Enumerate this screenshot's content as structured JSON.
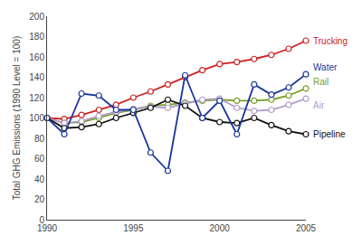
{
  "chart_data": {
    "type": "line",
    "ylabel": "Total GHG Emissions (1990 Level = 100)",
    "x": [
      1990,
      1991,
      1992,
      1993,
      1994,
      1995,
      1996,
      1997,
      1998,
      1999,
      2000,
      2001,
      2002,
      2003,
      2004,
      2005
    ],
    "series": [
      {
        "name": "Trucking",
        "color": "#cc2222",
        "values": [
          100,
          99,
          103,
          108,
          113,
          120,
          126,
          133,
          140,
          147,
          153,
          155,
          158,
          162,
          168,
          176
        ]
      },
      {
        "name": "Rail",
        "color": "#7a9e2a",
        "values": [
          100,
          95,
          96,
          100,
          105,
          108,
          112,
          113,
          115,
          117,
          118,
          117,
          117,
          118,
          122,
          129
        ]
      },
      {
        "name": "Air",
        "color": "#b39dcc",
        "values": [
          100,
          95,
          97,
          102,
          106,
          109,
          111,
          110,
          114,
          118,
          119,
          110,
          107,
          108,
          113,
          119
        ]
      },
      {
        "name": "Pipeline",
        "color": "#111111",
        "values": [
          100,
          90,
          91,
          94,
          100,
          105,
          110,
          118,
          112,
          100,
          96,
          95,
          100,
          93,
          87,
          84
        ]
      },
      {
        "name": "Water",
        "color": "#1a3699",
        "values": [
          100,
          84,
          124,
          122,
          108,
          108,
          66,
          48,
          142,
          100,
          117,
          84,
          133,
          123,
          130,
          143
        ]
      }
    ],
    "xlim": [
      1990,
      2005
    ],
    "ylim": [
      0,
      200
    ],
    "xticks": [
      1990,
      1995,
      2000,
      2005
    ],
    "yticks": [
      0,
      20,
      40,
      60,
      80,
      100,
      120,
      140,
      160,
      180,
      200
    ],
    "marker": "circle",
    "grid": false
  }
}
